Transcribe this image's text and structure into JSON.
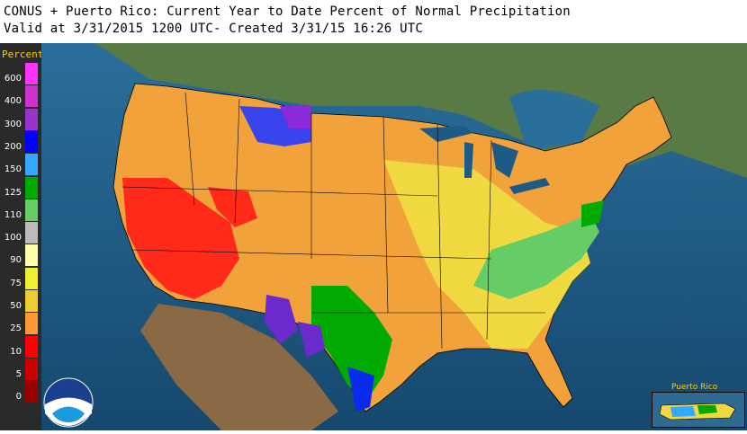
{
  "header": {
    "title_line1": "CONUS + Puerto Rico: Current Year to Date Percent of Normal Precipitation",
    "title_line2": "Valid at 3/31/2015 1200 UTC- Created 3/31/15 16:26 UTC"
  },
  "legend": {
    "title": "Percent",
    "items": [
      {
        "label": "600",
        "color": "#ff33ff"
      },
      {
        "label": "400",
        "color": "#cc33cc"
      },
      {
        "label": "300",
        "color": "#9933cc"
      },
      {
        "label": "200",
        "color": "#0000ff"
      },
      {
        "label": "150",
        "color": "#33aaff"
      },
      {
        "label": "125",
        "color": "#00aa00"
      },
      {
        "label": "110",
        "color": "#66cc66"
      },
      {
        "label": "100",
        "color": "#bbbbbb"
      },
      {
        "label": "90",
        "color": "#ffffaa"
      },
      {
        "label": "75",
        "color": "#eeee33"
      },
      {
        "label": "50",
        "color": "#eecc33"
      },
      {
        "label": "25",
        "color": "#ff9933"
      },
      {
        "label": "10",
        "color": "#ff0000"
      },
      {
        "label": "5",
        "color": "#cc0000"
      },
      {
        "label": "0",
        "color": "#990000"
      }
    ]
  },
  "inset": {
    "label": "Puerto Rico"
  },
  "logo": {
    "text": "NOAA"
  },
  "colors": {
    "ocean": "#1e5a86",
    "land_outside": "#7a6a4f"
  }
}
